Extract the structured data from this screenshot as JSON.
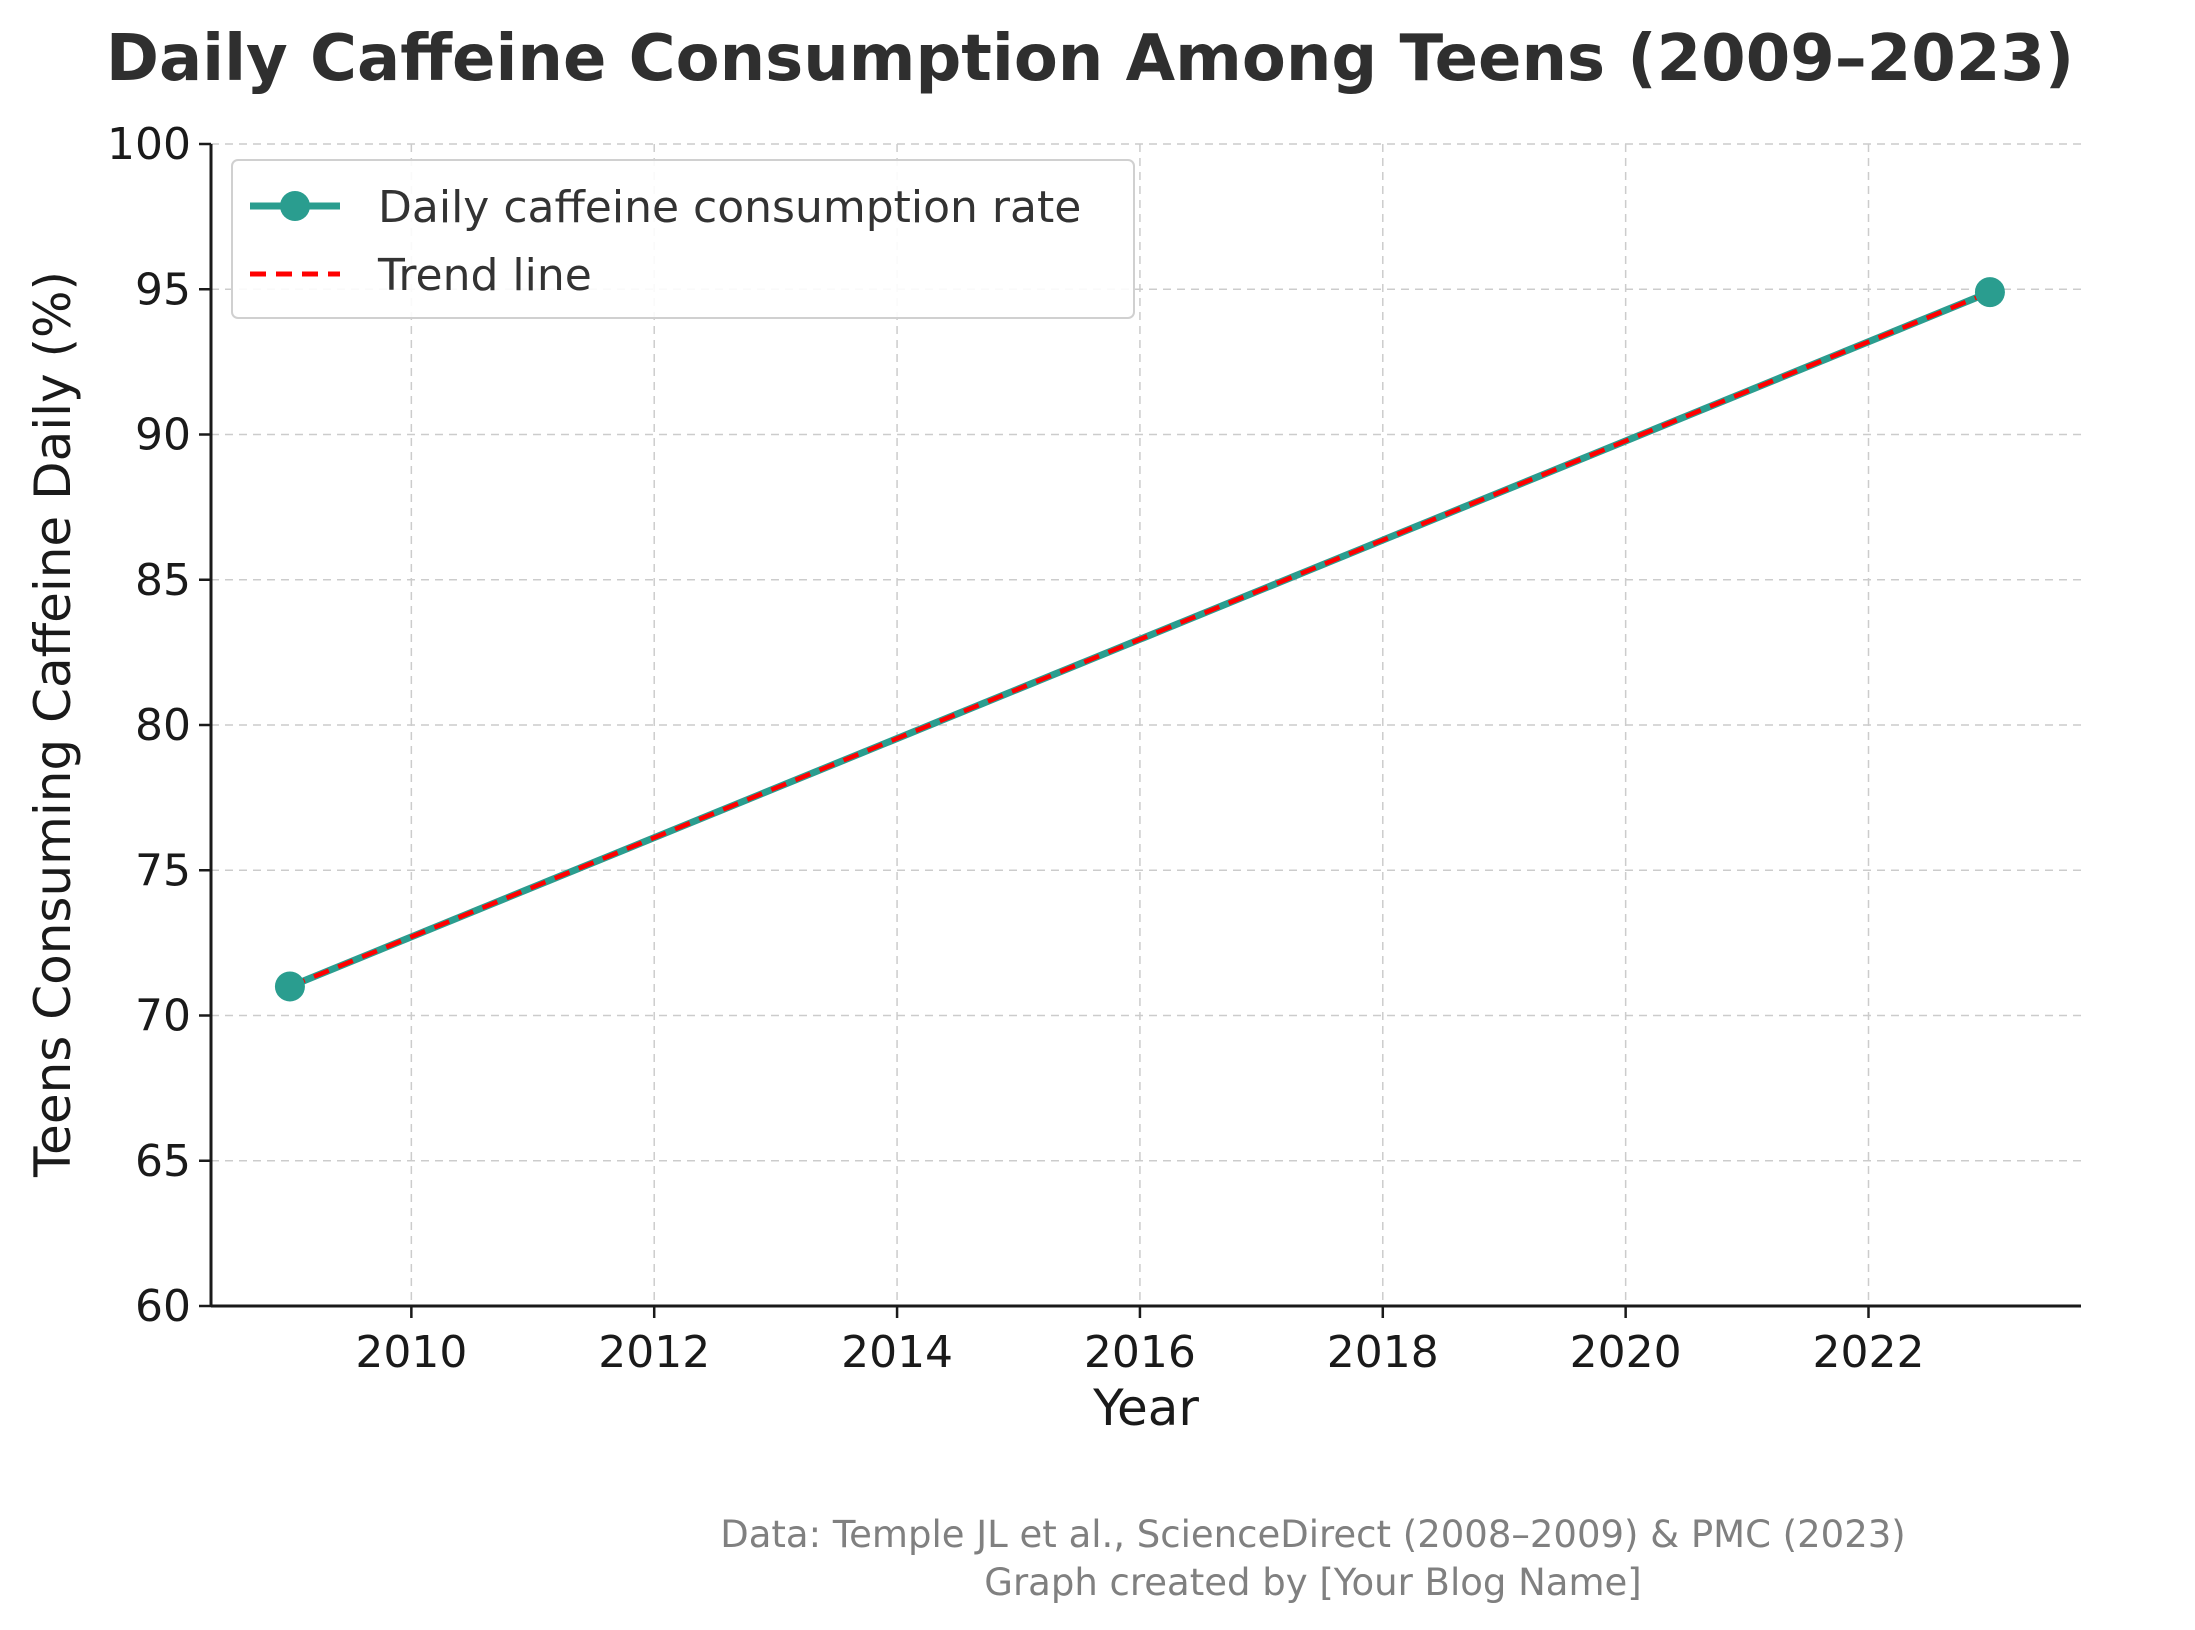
{
  "chart_data": {
    "type": "line",
    "title": "Daily Caffeine Consumption Among Teens (2009–2023)",
    "xlabel": "Year",
    "ylabel": "Teens Consuming Caffeine Daily (%)",
    "xlim": [
      2008.35,
      2023.75
    ],
    "ylim": [
      60,
      100
    ],
    "xticks": [
      2010,
      2012,
      2014,
      2016,
      2018,
      2020,
      2022
    ],
    "yticks": [
      60,
      65,
      70,
      75,
      80,
      85,
      90,
      95,
      100
    ],
    "grid": true,
    "legend_position": "top-left",
    "series": [
      {
        "name": "Daily caffeine consumption rate",
        "x": [
          2009,
          2023
        ],
        "y": [
          71,
          94.9
        ],
        "color": "#2a9d8f",
        "style": "solid",
        "marker": "circle"
      },
      {
        "name": "Trend line",
        "x": [
          2009,
          2023
        ],
        "y": [
          71,
          94.9
        ],
        "color": "#ff0000",
        "style": "dashed",
        "marker": "none"
      }
    ]
  },
  "footer": {
    "source_line": "Data: Temple JL et al., ScienceDirect (2008–2009) & PMC (2023)",
    "credit_line": "Graph created by [Your Blog Name]"
  }
}
